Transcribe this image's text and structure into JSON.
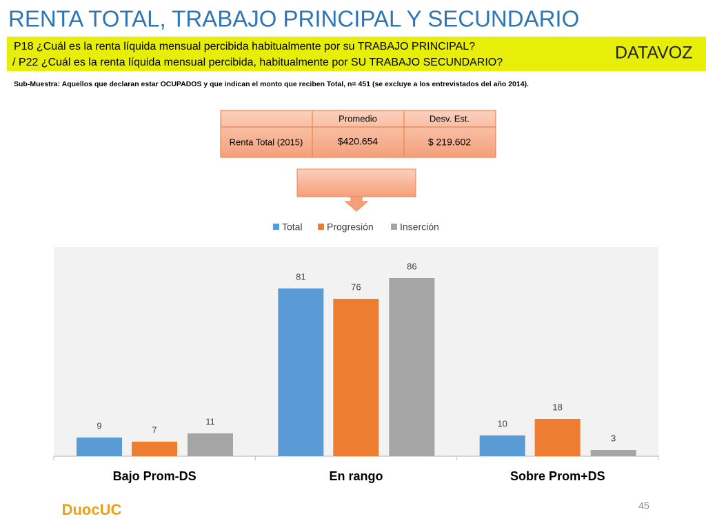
{
  "header": {
    "title": "RENTA TOTAL, TRABAJO PRINCIPAL Y SECUNDARIO",
    "questions": [
      "P18 ¿Cuál es la renta líquida mensual percibida habitualmente por su TRABAJO PRINCIPAL?",
      "/ P22 ¿Cuál es la  renta líquida mensual percibida, habitualmente por  SU TRABAJO SECUNDARIO?"
    ],
    "logo": "DATAVOZ",
    "note": "Sub-Muestra: Aquellos que declaran estar OCUPADOS y que indican el monto que reciben Total, n= 451  (se excluye a los entrevistados del año 2014)."
  },
  "table": {
    "columns": [
      "Promedio",
      "Desv. Est."
    ],
    "rows": [
      [
        "Renta Total (2015)",
        "$420.654",
        "$ 219.602"
      ]
    ]
  },
  "chart_data": {
    "type": "bar",
    "categories": [
      "Bajo  Prom-DS",
      "En rango",
      "Sobre Prom+DS"
    ],
    "series": [
      {
        "name": "Total",
        "color": "#5b9bd5",
        "values": [
          9,
          81,
          10
        ]
      },
      {
        "name": "Progresión",
        "color": "#ed7d31",
        "values": [
          7,
          76,
          18
        ]
      },
      {
        "name": "Inserción",
        "color": "#a5a5a5",
        "values": [
          11,
          86,
          3
        ]
      }
    ],
    "legend": "top"
  },
  "footer": {
    "logo": "DuocUC",
    "page": "45"
  }
}
